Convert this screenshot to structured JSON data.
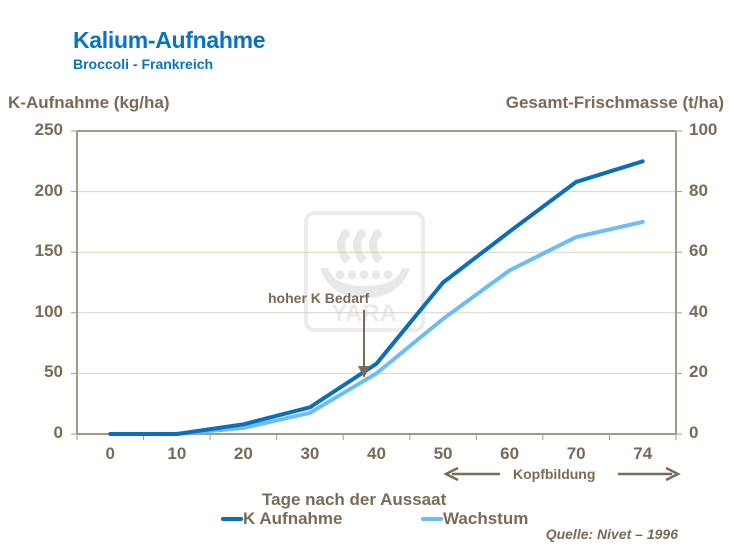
{
  "header": {
    "title": "Kalium-Aufnahme",
    "subtitle": "Broccoli  - Frankreich"
  },
  "colors": {
    "title": "#0b72c0",
    "text": "#7a6a58",
    "k_aufnahme": "#0a6fba",
    "wachstum": "#6cbcf5",
    "grid": "#d9d2ca",
    "axis": "#a59888"
  },
  "chart_data": {
    "type": "line",
    "title": "Kalium-Aufnahme",
    "subtitle": "Broccoli - Frankreich",
    "xlabel": "Tage nach der Aussaat",
    "ylabel": "K-Aufnahme (kg/ha)",
    "ylabel_right": "Gesamt-Frischmasse (t/ha)",
    "categories": [
      "0",
      "10",
      "20",
      "30",
      "40",
      "50",
      "60",
      "70",
      "74"
    ],
    "series": [
      {
        "name": "K Aufnahme",
        "axis": "left",
        "values": [
          0,
          0,
          8,
          22,
          58,
          125,
          167,
          208,
          225
        ]
      },
      {
        "name": "Wachstum",
        "axis": "right",
        "values": [
          0,
          0,
          2,
          7,
          20,
          38,
          54,
          65,
          70
        ]
      }
    ],
    "ylim": [
      0,
      250
    ],
    "ylim_right": [
      0,
      100
    ],
    "yticks": [
      "0",
      "50",
      "100",
      "150",
      "200",
      "250"
    ],
    "yticks_right": [
      "0",
      "20",
      "40",
      "60",
      "80",
      "100"
    ],
    "grid": true,
    "legend_position": "bottom",
    "annotations": [
      {
        "text": "hoher K Bedarf",
        "arrow_to_x": "40"
      },
      {
        "text": "Kopfbildung",
        "span": [
          "50",
          "74"
        ]
      }
    ]
  },
  "annotations": {
    "hoher": "hoher K Bedarf",
    "kopf": "Kopfbildung"
  },
  "legend": {
    "k": "K Aufnahme",
    "w": "Wachstum"
  },
  "source": "Quelle:  Nivet – 1996",
  "watermark": "YARA"
}
